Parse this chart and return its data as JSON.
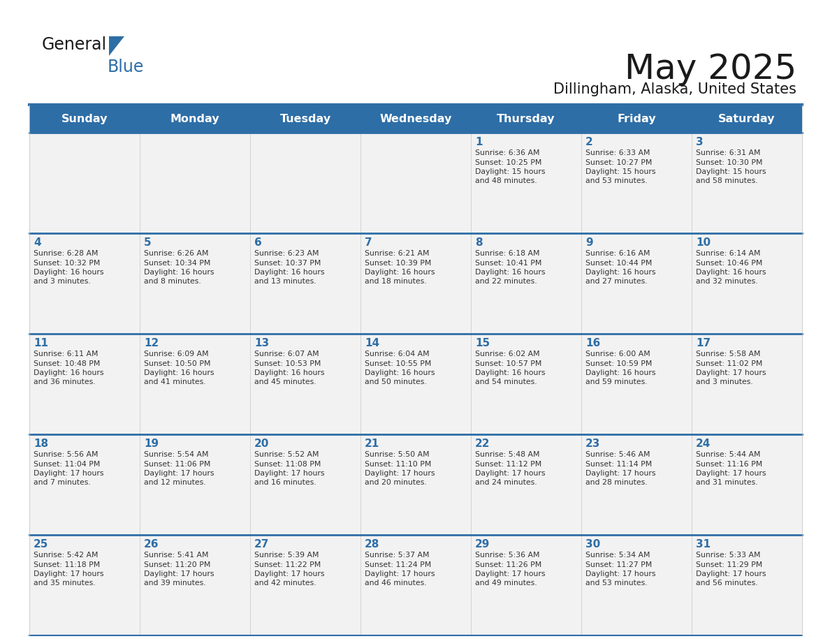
{
  "title": "May 2025",
  "subtitle": "Dillingham, Alaska, United States",
  "days_of_week": [
    "Sunday",
    "Monday",
    "Tuesday",
    "Wednesday",
    "Thursday",
    "Friday",
    "Saturday"
  ],
  "header_bg_color": "#2E6EA6",
  "header_text_color": "#FFFFFF",
  "cell_bg_color": "#F2F2F2",
  "day_number_color": "#2E6EA6",
  "text_color": "#333333",
  "border_color": "#2E6EA6",
  "weeks": [
    [
      {
        "day": null
      },
      {
        "day": null
      },
      {
        "day": null
      },
      {
        "day": null
      },
      {
        "day": 1,
        "sunrise": "6:36 AM",
        "sunset": "10:25 PM",
        "daylight": "15 hours\nand 48 minutes."
      },
      {
        "day": 2,
        "sunrise": "6:33 AM",
        "sunset": "10:27 PM",
        "daylight": "15 hours\nand 53 minutes."
      },
      {
        "day": 3,
        "sunrise": "6:31 AM",
        "sunset": "10:30 PM",
        "daylight": "15 hours\nand 58 minutes."
      }
    ],
    [
      {
        "day": 4,
        "sunrise": "6:28 AM",
        "sunset": "10:32 PM",
        "daylight": "16 hours\nand 3 minutes."
      },
      {
        "day": 5,
        "sunrise": "6:26 AM",
        "sunset": "10:34 PM",
        "daylight": "16 hours\nand 8 minutes."
      },
      {
        "day": 6,
        "sunrise": "6:23 AM",
        "sunset": "10:37 PM",
        "daylight": "16 hours\nand 13 minutes."
      },
      {
        "day": 7,
        "sunrise": "6:21 AM",
        "sunset": "10:39 PM",
        "daylight": "16 hours\nand 18 minutes."
      },
      {
        "day": 8,
        "sunrise": "6:18 AM",
        "sunset": "10:41 PM",
        "daylight": "16 hours\nand 22 minutes."
      },
      {
        "day": 9,
        "sunrise": "6:16 AM",
        "sunset": "10:44 PM",
        "daylight": "16 hours\nand 27 minutes."
      },
      {
        "day": 10,
        "sunrise": "6:14 AM",
        "sunset": "10:46 PM",
        "daylight": "16 hours\nand 32 minutes."
      }
    ],
    [
      {
        "day": 11,
        "sunrise": "6:11 AM",
        "sunset": "10:48 PM",
        "daylight": "16 hours\nand 36 minutes."
      },
      {
        "day": 12,
        "sunrise": "6:09 AM",
        "sunset": "10:50 PM",
        "daylight": "16 hours\nand 41 minutes."
      },
      {
        "day": 13,
        "sunrise": "6:07 AM",
        "sunset": "10:53 PM",
        "daylight": "16 hours\nand 45 minutes."
      },
      {
        "day": 14,
        "sunrise": "6:04 AM",
        "sunset": "10:55 PM",
        "daylight": "16 hours\nand 50 minutes."
      },
      {
        "day": 15,
        "sunrise": "6:02 AM",
        "sunset": "10:57 PM",
        "daylight": "16 hours\nand 54 minutes."
      },
      {
        "day": 16,
        "sunrise": "6:00 AM",
        "sunset": "10:59 PM",
        "daylight": "16 hours\nand 59 minutes."
      },
      {
        "day": 17,
        "sunrise": "5:58 AM",
        "sunset": "11:02 PM",
        "daylight": "17 hours\nand 3 minutes."
      }
    ],
    [
      {
        "day": 18,
        "sunrise": "5:56 AM",
        "sunset": "11:04 PM",
        "daylight": "17 hours\nand 7 minutes."
      },
      {
        "day": 19,
        "sunrise": "5:54 AM",
        "sunset": "11:06 PM",
        "daylight": "17 hours\nand 12 minutes."
      },
      {
        "day": 20,
        "sunrise": "5:52 AM",
        "sunset": "11:08 PM",
        "daylight": "17 hours\nand 16 minutes."
      },
      {
        "day": 21,
        "sunrise": "5:50 AM",
        "sunset": "11:10 PM",
        "daylight": "17 hours\nand 20 minutes."
      },
      {
        "day": 22,
        "sunrise": "5:48 AM",
        "sunset": "11:12 PM",
        "daylight": "17 hours\nand 24 minutes."
      },
      {
        "day": 23,
        "sunrise": "5:46 AM",
        "sunset": "11:14 PM",
        "daylight": "17 hours\nand 28 minutes."
      },
      {
        "day": 24,
        "sunrise": "5:44 AM",
        "sunset": "11:16 PM",
        "daylight": "17 hours\nand 31 minutes."
      }
    ],
    [
      {
        "day": 25,
        "sunrise": "5:42 AM",
        "sunset": "11:18 PM",
        "daylight": "17 hours\nand 35 minutes."
      },
      {
        "day": 26,
        "sunrise": "5:41 AM",
        "sunset": "11:20 PM",
        "daylight": "17 hours\nand 39 minutes."
      },
      {
        "day": 27,
        "sunrise": "5:39 AM",
        "sunset": "11:22 PM",
        "daylight": "17 hours\nand 42 minutes."
      },
      {
        "day": 28,
        "sunrise": "5:37 AM",
        "sunset": "11:24 PM",
        "daylight": "17 hours\nand 46 minutes."
      },
      {
        "day": 29,
        "sunrise": "5:36 AM",
        "sunset": "11:26 PM",
        "daylight": "17 hours\nand 49 minutes."
      },
      {
        "day": 30,
        "sunrise": "5:34 AM",
        "sunset": "11:27 PM",
        "daylight": "17 hours\nand 53 minutes."
      },
      {
        "day": 31,
        "sunrise": "5:33 AM",
        "sunset": "11:29 PM",
        "daylight": "17 hours\nand 56 minutes."
      }
    ]
  ]
}
